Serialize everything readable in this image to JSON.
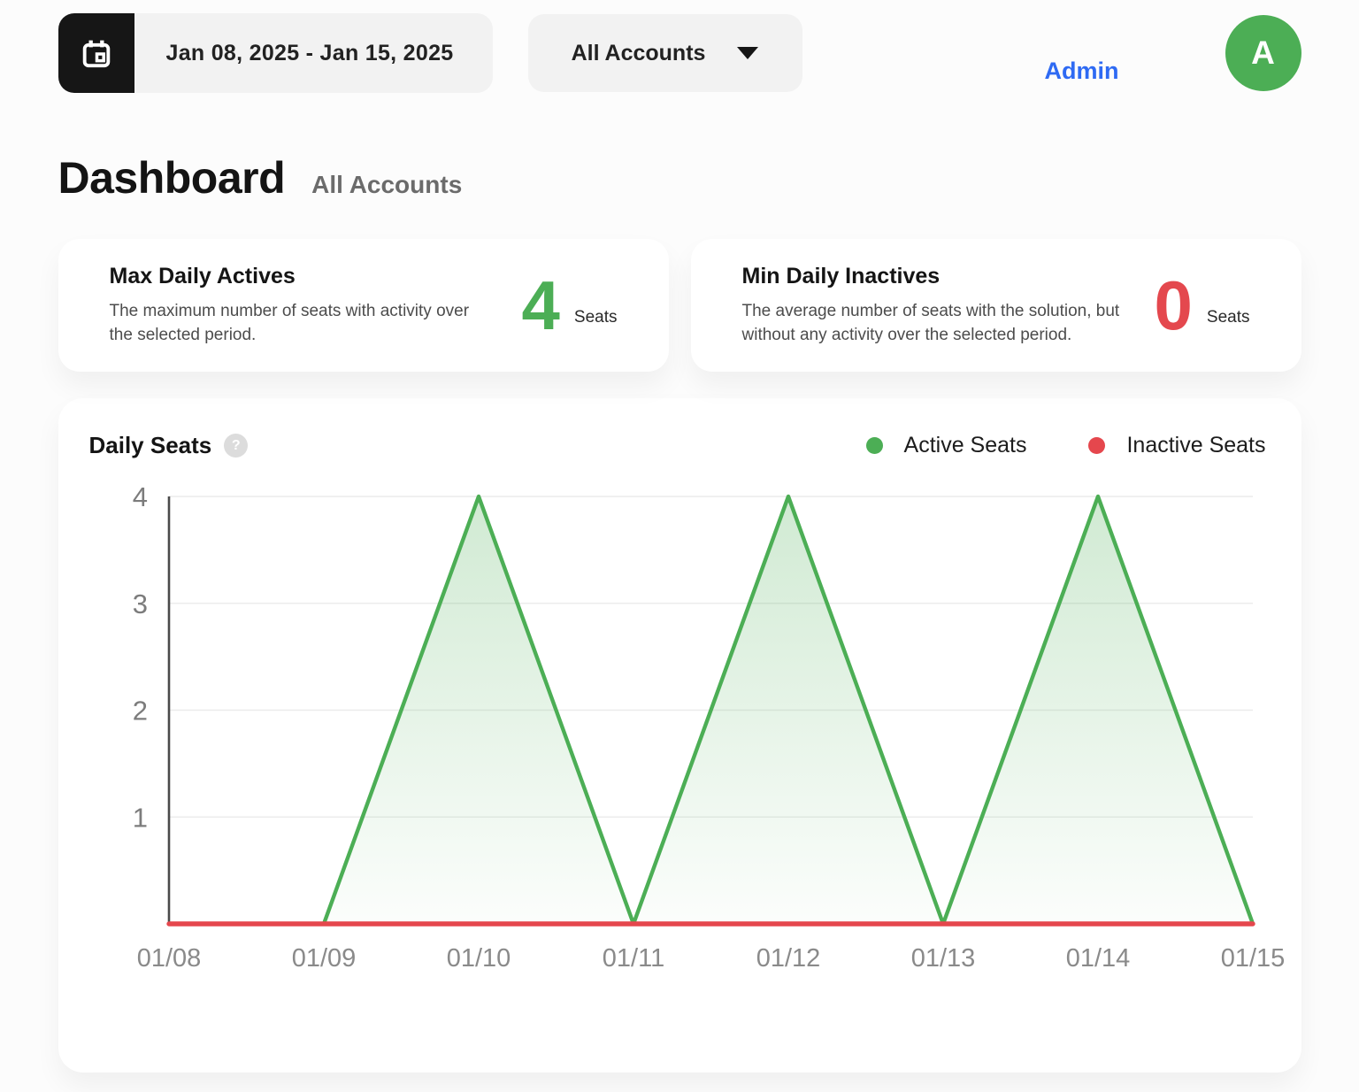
{
  "header": {
    "date_range": "Jan 08, 2025 - Jan 15, 2025",
    "accounts_dropdown": "All Accounts",
    "admin_link": "Admin",
    "avatar_initial": "A"
  },
  "page": {
    "title": "Dashboard",
    "subtitle": "All Accounts"
  },
  "cards": [
    {
      "title": "Max Daily Actives",
      "description": "The maximum number of seats with activity over the selected period.",
      "value": "4",
      "unit": "Seats",
      "value_color": "#4cae55"
    },
    {
      "title": "Min Daily Inactives",
      "description": "The average number of seats with the solution, but without any activity over the selected period.",
      "value": "0",
      "unit": "Seats",
      "value_color": "#e4484e"
    }
  ],
  "chart": {
    "title": "Daily Seats",
    "help_icon": "?"
  },
  "chart_data": {
    "type": "area",
    "title": "Daily Seats",
    "x": [
      "01/08",
      "01/09",
      "01/10",
      "01/11",
      "01/12",
      "01/13",
      "01/14",
      "01/15"
    ],
    "series": [
      {
        "name": "Active Seats",
        "color": "#4cae55",
        "values": [
          0,
          0,
          4,
          0,
          4,
          0,
          4,
          0
        ],
        "fill": "gradient"
      },
      {
        "name": "Inactive Seats",
        "color": "#e5474d",
        "values": [
          0,
          0,
          0,
          0,
          0,
          0,
          0,
          0
        ],
        "fill": "none"
      }
    ],
    "ylim": [
      0,
      4
    ],
    "yticks": [
      1,
      2,
      3,
      4
    ],
    "grid": true,
    "legend_position": "top-right",
    "colors": {
      "gridline": "#ececec",
      "axis": "#4a4a4a",
      "tick_label": "#8a8a8a"
    }
  }
}
